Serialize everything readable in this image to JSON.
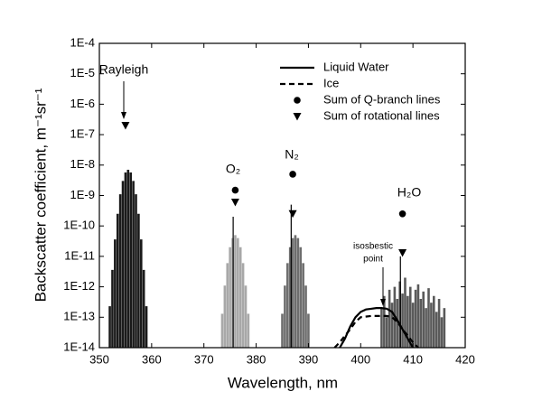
{
  "chart_data": {
    "type": "line",
    "xlabel": "Wavelength, nm",
    "ylabel": "Backscatter coefficient, m⁻¹sr⁻¹",
    "xlim": [
      350,
      420
    ],
    "xticks": [
      350,
      360,
      370,
      380,
      390,
      400,
      410,
      420
    ],
    "ylim": [
      1e-14,
      0.0001
    ],
    "log_y": true,
    "yticks": [
      {
        "value": 1e-14,
        "label": "1E-14"
      },
      {
        "value": 1e-13,
        "label": "1E-13"
      },
      {
        "value": 1e-12,
        "label": "1E-12"
      },
      {
        "value": 1e-11,
        "label": "1E-11"
      },
      {
        "value": 1e-10,
        "label": "1E-10"
      },
      {
        "value": 1e-09,
        "label": "1E-9"
      },
      {
        "value": 1e-08,
        "label": "1E-8"
      },
      {
        "value": 1e-07,
        "label": "1E-7"
      },
      {
        "value": 1e-06,
        "label": "1E-6"
      },
      {
        "value": 1e-05,
        "label": "1E-5"
      },
      {
        "value": 0.0001,
        "label": "1E-4"
      }
    ],
    "legend": "upper right",
    "annotations": [
      {
        "text": "Rayleigh"
      },
      {
        "text": "O₂"
      },
      {
        "text": "N₂"
      },
      {
        "text": "H₂O"
      },
      {
        "text": [
          "isosbestic",
          "point"
        ]
      }
    ],
    "series": [
      {
        "type": "bar",
        "color": "#1a1a1a",
        "x": [
          352,
          352.5,
          353,
          353.5,
          354,
          354.5,
          355,
          355.5,
          356,
          356.5,
          357,
          357.5,
          358,
          358.5,
          359
        ],
        "values": [
          2.3e-13,
          3.6e-12,
          3.6e-11,
          2.5e-10,
          1.1e-09,
          3e-09,
          5.7e-09,
          7e-09,
          5.7e-09,
          3e-09,
          1.1e-09,
          2.5e-10,
          3.6e-11,
          3.6e-12,
          2.3e-13
        ]
      },
      {
        "type": "bar",
        "color": "#a8a8a8",
        "x": [
          373.5,
          374,
          374.5,
          375,
          375.5,
          376,
          376.5,
          377,
          377.5,
          378,
          378.5
        ],
        "values": [
          1.3e-13,
          1.1e-12,
          6e-12,
          2e-11,
          4e-11,
          5e-11,
          4e-11,
          2e-11,
          6e-12,
          1.1e-12,
          1.3e-13
        ]
      },
      {
        "type": "bar",
        "color": "#6e6e6e",
        "x": [
          385,
          385.5,
          386,
          386.5,
          387,
          387.5,
          388,
          388.5,
          389,
          389.5,
          390
        ],
        "values": [
          1.3e-13,
          1.1e-12,
          6e-12,
          2e-11,
          4e-11,
          5e-11,
          4e-11,
          2e-11,
          6e-12,
          1.1e-12,
          1.3e-13
        ]
      },
      {
        "type": "bar",
        "color": "#5a5a5a",
        "x": [
          404,
          404.5,
          405,
          405.5,
          406,
          406.5,
          407,
          407.5,
          408,
          408.5,
          409,
          409.5,
          410,
          410.5,
          411,
          411.5,
          412,
          412.5,
          413,
          413.5,
          414,
          414.5,
          415,
          415.5,
          416
        ],
        "values": [
          2e-13,
          5e-13,
          1e-13,
          8e-13,
          3e-13,
          1e-12,
          4e-13,
          1.5e-12,
          6e-13,
          2e-12,
          5e-13,
          1e-12,
          3e-13,
          8e-13,
          1.2e-12,
          4e-13,
          7e-13,
          2e-13,
          9e-13,
          3e-13,
          5e-13,
          1.5e-13,
          4e-13,
          1e-13,
          2e-13
        ]
      },
      {
        "type": "stem",
        "color": "#000000",
        "x": [
          375.6,
          386.7,
          407.6
        ],
        "values": [
          2e-10,
          5e-10,
          1e-11
        ]
      },
      {
        "type": "line",
        "name": "Liquid Water",
        "color": "#000000",
        "dash": false,
        "x": [
          396,
          397,
          398,
          399,
          400,
          401,
          402,
          403,
          404,
          405,
          406,
          407,
          408,
          409,
          410
        ],
        "values": [
          1e-14,
          2e-14,
          5e-14,
          1e-13,
          1.5e-13,
          1.8e-13,
          1.9e-13,
          2e-13,
          2e-13,
          1.9e-13,
          1.5e-13,
          8e-14,
          4e-14,
          2e-14,
          1e-14
        ]
      },
      {
        "type": "line",
        "name": "Ice",
        "color": "#000000",
        "dash": true,
        "x": [
          395,
          396,
          397,
          398,
          399,
          400,
          402,
          404,
          405,
          406,
          407,
          408,
          409,
          410,
          411
        ],
        "values": [
          1e-14,
          1.5e-14,
          2.5e-14,
          4e-14,
          7e-14,
          1e-13,
          1.1e-13,
          1.1e-13,
          1.1e-13,
          1e-13,
          7e-14,
          4e-14,
          2.5e-14,
          1.5e-14,
          1e-14
        ]
      },
      {
        "type": "scatter",
        "name": "Sum of Q-branch lines",
        "color": "#000000",
        "marker": "circle",
        "x": [
          376,
          387,
          408
        ],
        "values": [
          1.5e-09,
          5e-09,
          2.5e-10
        ]
      },
      {
        "type": "scatter",
        "name": "Sum of rotational lines",
        "color": "#000000",
        "marker": "triangle",
        "x": [
          355,
          376,
          387,
          408
        ],
        "values": [
          2e-07,
          6e-10,
          2.5e-10,
          1.3e-11
        ]
      }
    ]
  }
}
